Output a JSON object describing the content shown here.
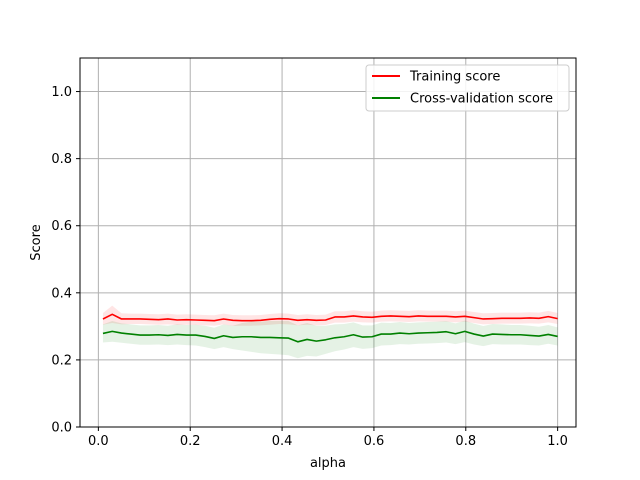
{
  "chart_data": {
    "type": "line",
    "title": "",
    "xlabel": "alpha",
    "ylabel": "Score",
    "xlim": [
      -0.04,
      1.04
    ],
    "ylim": [
      0.0,
      1.1
    ],
    "xticks": [
      "0.0",
      "0.2",
      "0.4",
      "0.6",
      "0.8",
      "1.0"
    ],
    "yticks": [
      "0.0",
      "0.2",
      "0.4",
      "0.6",
      "0.8",
      "1.0"
    ],
    "grid": true,
    "legend_position": "top-right",
    "x": [
      0.01,
      0.0302,
      0.0504,
      0.0706,
      0.0908,
      0.111,
      0.1312,
      0.1514,
      0.1716,
      0.1918,
      0.212,
      0.2322,
      0.2524,
      0.2726,
      0.2928,
      0.313,
      0.3332,
      0.3534,
      0.3736,
      0.3938,
      0.414,
      0.4342,
      0.4544,
      0.4746,
      0.4948,
      0.515,
      0.5352,
      0.5554,
      0.5756,
      0.5958,
      0.616,
      0.6362,
      0.6564,
      0.6766,
      0.6968,
      0.717,
      0.7372,
      0.7574,
      0.7776,
      0.7978,
      0.818,
      0.8382,
      0.8584,
      0.8786,
      0.8988,
      0.919,
      0.9392,
      0.9594,
      0.9796,
      1.0
    ],
    "series": [
      {
        "name": "Training score",
        "color": "#ff0000",
        "fill": "#ff0000",
        "values": [
          0.322,
          0.336,
          0.322,
          0.322,
          0.322,
          0.321,
          0.32,
          0.322,
          0.319,
          0.32,
          0.319,
          0.318,
          0.317,
          0.322,
          0.318,
          0.317,
          0.317,
          0.318,
          0.321,
          0.323,
          0.322,
          0.318,
          0.32,
          0.318,
          0.319,
          0.328,
          0.328,
          0.331,
          0.328,
          0.327,
          0.33,
          0.331,
          0.33,
          0.329,
          0.331,
          0.33,
          0.33,
          0.33,
          0.328,
          0.33,
          0.326,
          0.322,
          0.323,
          0.324,
          0.324,
          0.324,
          0.325,
          0.324,
          0.329,
          0.323
        ],
        "lower": [
          0.305,
          0.31,
          0.306,
          0.307,
          0.307,
          0.306,
          0.305,
          0.306,
          0.304,
          0.305,
          0.304,
          0.303,
          0.302,
          0.306,
          0.301,
          0.302,
          0.302,
          0.303,
          0.305,
          0.307,
          0.306,
          0.303,
          0.305,
          0.303,
          0.304,
          0.311,
          0.311,
          0.314,
          0.312,
          0.311,
          0.314,
          0.315,
          0.314,
          0.313,
          0.315,
          0.314,
          0.314,
          0.314,
          0.312,
          0.314,
          0.31,
          0.306,
          0.307,
          0.308,
          0.308,
          0.308,
          0.309,
          0.308,
          0.312,
          0.307
        ],
        "upper": [
          0.34,
          0.362,
          0.339,
          0.338,
          0.338,
          0.337,
          0.336,
          0.338,
          0.335,
          0.336,
          0.335,
          0.334,
          0.333,
          0.338,
          0.334,
          0.333,
          0.333,
          0.334,
          0.337,
          0.339,
          0.338,
          0.334,
          0.336,
          0.334,
          0.335,
          0.345,
          0.345,
          0.348,
          0.345,
          0.344,
          0.347,
          0.348,
          0.347,
          0.346,
          0.348,
          0.347,
          0.347,
          0.347,
          0.345,
          0.347,
          0.343,
          0.339,
          0.34,
          0.341,
          0.341,
          0.341,
          0.342,
          0.341,
          0.346,
          0.34
        ]
      },
      {
        "name": "Cross-validation score",
        "color": "#008000",
        "fill": "#008000",
        "values": [
          0.279,
          0.285,
          0.28,
          0.277,
          0.274,
          0.274,
          0.275,
          0.273,
          0.276,
          0.274,
          0.274,
          0.27,
          0.264,
          0.272,
          0.267,
          0.269,
          0.269,
          0.267,
          0.267,
          0.266,
          0.265,
          0.254,
          0.261,
          0.256,
          0.26,
          0.266,
          0.269,
          0.275,
          0.268,
          0.269,
          0.277,
          0.277,
          0.28,
          0.278,
          0.28,
          0.281,
          0.282,
          0.284,
          0.278,
          0.285,
          0.277,
          0.271,
          0.277,
          0.276,
          0.275,
          0.275,
          0.273,
          0.271,
          0.276,
          0.27
        ],
        "lower": [
          0.252,
          0.254,
          0.251,
          0.248,
          0.245,
          0.245,
          0.246,
          0.244,
          0.246,
          0.244,
          0.243,
          0.238,
          0.232,
          0.238,
          0.232,
          0.228,
          0.224,
          0.22,
          0.218,
          0.216,
          0.214,
          0.205,
          0.212,
          0.21,
          0.218,
          0.226,
          0.231,
          0.238,
          0.233,
          0.235,
          0.243,
          0.244,
          0.247,
          0.246,
          0.248,
          0.249,
          0.25,
          0.252,
          0.247,
          0.253,
          0.246,
          0.241,
          0.247,
          0.246,
          0.246,
          0.246,
          0.244,
          0.243,
          0.248,
          0.243
        ],
        "upper": [
          0.306,
          0.316,
          0.309,
          0.306,
          0.303,
          0.303,
          0.304,
          0.302,
          0.306,
          0.304,
          0.305,
          0.302,
          0.296,
          0.306,
          0.302,
          0.31,
          0.314,
          0.314,
          0.316,
          0.316,
          0.316,
          0.303,
          0.31,
          0.302,
          0.302,
          0.306,
          0.307,
          0.312,
          0.303,
          0.303,
          0.311,
          0.31,
          0.313,
          0.31,
          0.312,
          0.313,
          0.314,
          0.316,
          0.309,
          0.317,
          0.308,
          0.301,
          0.307,
          0.306,
          0.304,
          0.304,
          0.302,
          0.299,
          0.304,
          0.297
        ]
      }
    ]
  }
}
